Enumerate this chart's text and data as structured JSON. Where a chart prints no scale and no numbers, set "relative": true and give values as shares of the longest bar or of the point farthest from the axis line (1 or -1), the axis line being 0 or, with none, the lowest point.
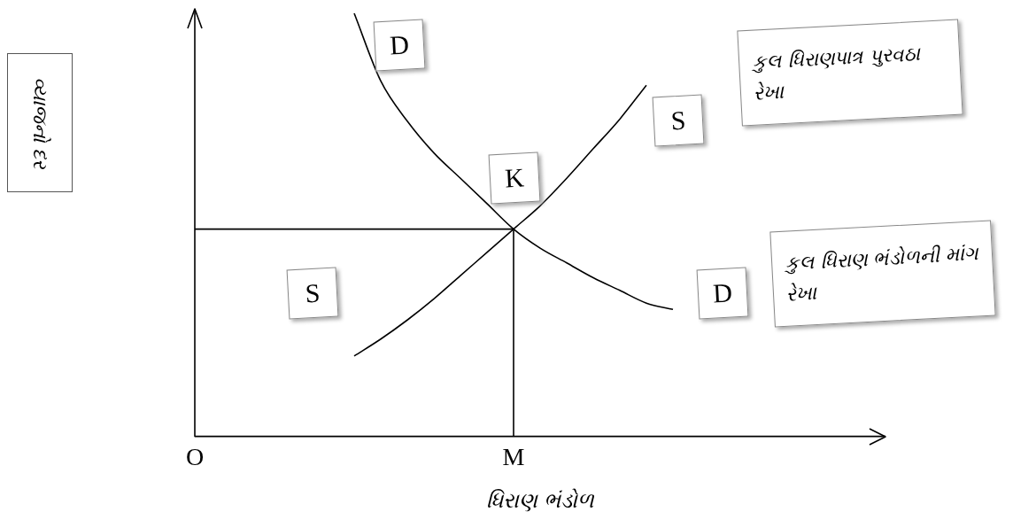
{
  "chart_data": {
    "type": "line",
    "relative": true,
    "xlabel": "ધિરાણ ભંડોળ",
    "categories": [
      "O",
      null,
      null,
      null,
      null,
      null,
      null,
      null,
      null,
      null,
      null,
      null,
      "M",
      null,
      null,
      null,
      null,
      null,
      null,
      null,
      null,
      null,
      null,
      null,
      null,
      null,
      null
    ],
    "series": [
      {
        "color": "#000000",
        "values": [
          null,
          null,
          null,
          null,
          null,
          null,
          1.0,
          0.84,
          0.745,
          0.67,
          0.61,
          0.55,
          0.49,
          0.445,
          0.41,
          0.375,
          0.345,
          0.315,
          0.3,
          null,
          null,
          null,
          null,
          null,
          null,
          null,
          null
        ]
      },
      {
        "color": "#000000",
        "values": [
          null,
          null,
          null,
          null,
          null,
          null,
          0.19,
          0.23,
          0.275,
          0.325,
          0.38,
          0.435,
          0.49,
          0.545,
          0.61,
          0.68,
          0.75,
          0.83,
          null,
          null,
          null,
          null,
          null,
          null,
          null,
          null,
          null
        ]
      },
      {
        "color": "#000000",
        "x": [
          "O",
          "M"
        ],
        "values": [
          0.49,
          0.49
        ]
      },
      {
        "color": "#000000",
        "x": [
          "M",
          "M"
        ],
        "values": [
          0,
          0.49
        ]
      }
    ],
    "annotations": [
      "D",
      "S",
      "K",
      "S",
      "D",
      "કુલ ધિરાણપાત્ર પુરવઠા રેખા",
      "કુલ ધિરાણ ભંડોળની માંગ રેખા",
      "વ્યાજનો દર"
    ],
    "grid": false,
    "legend": false,
    "marker": "none",
    "line_style": "solid"
  }
}
